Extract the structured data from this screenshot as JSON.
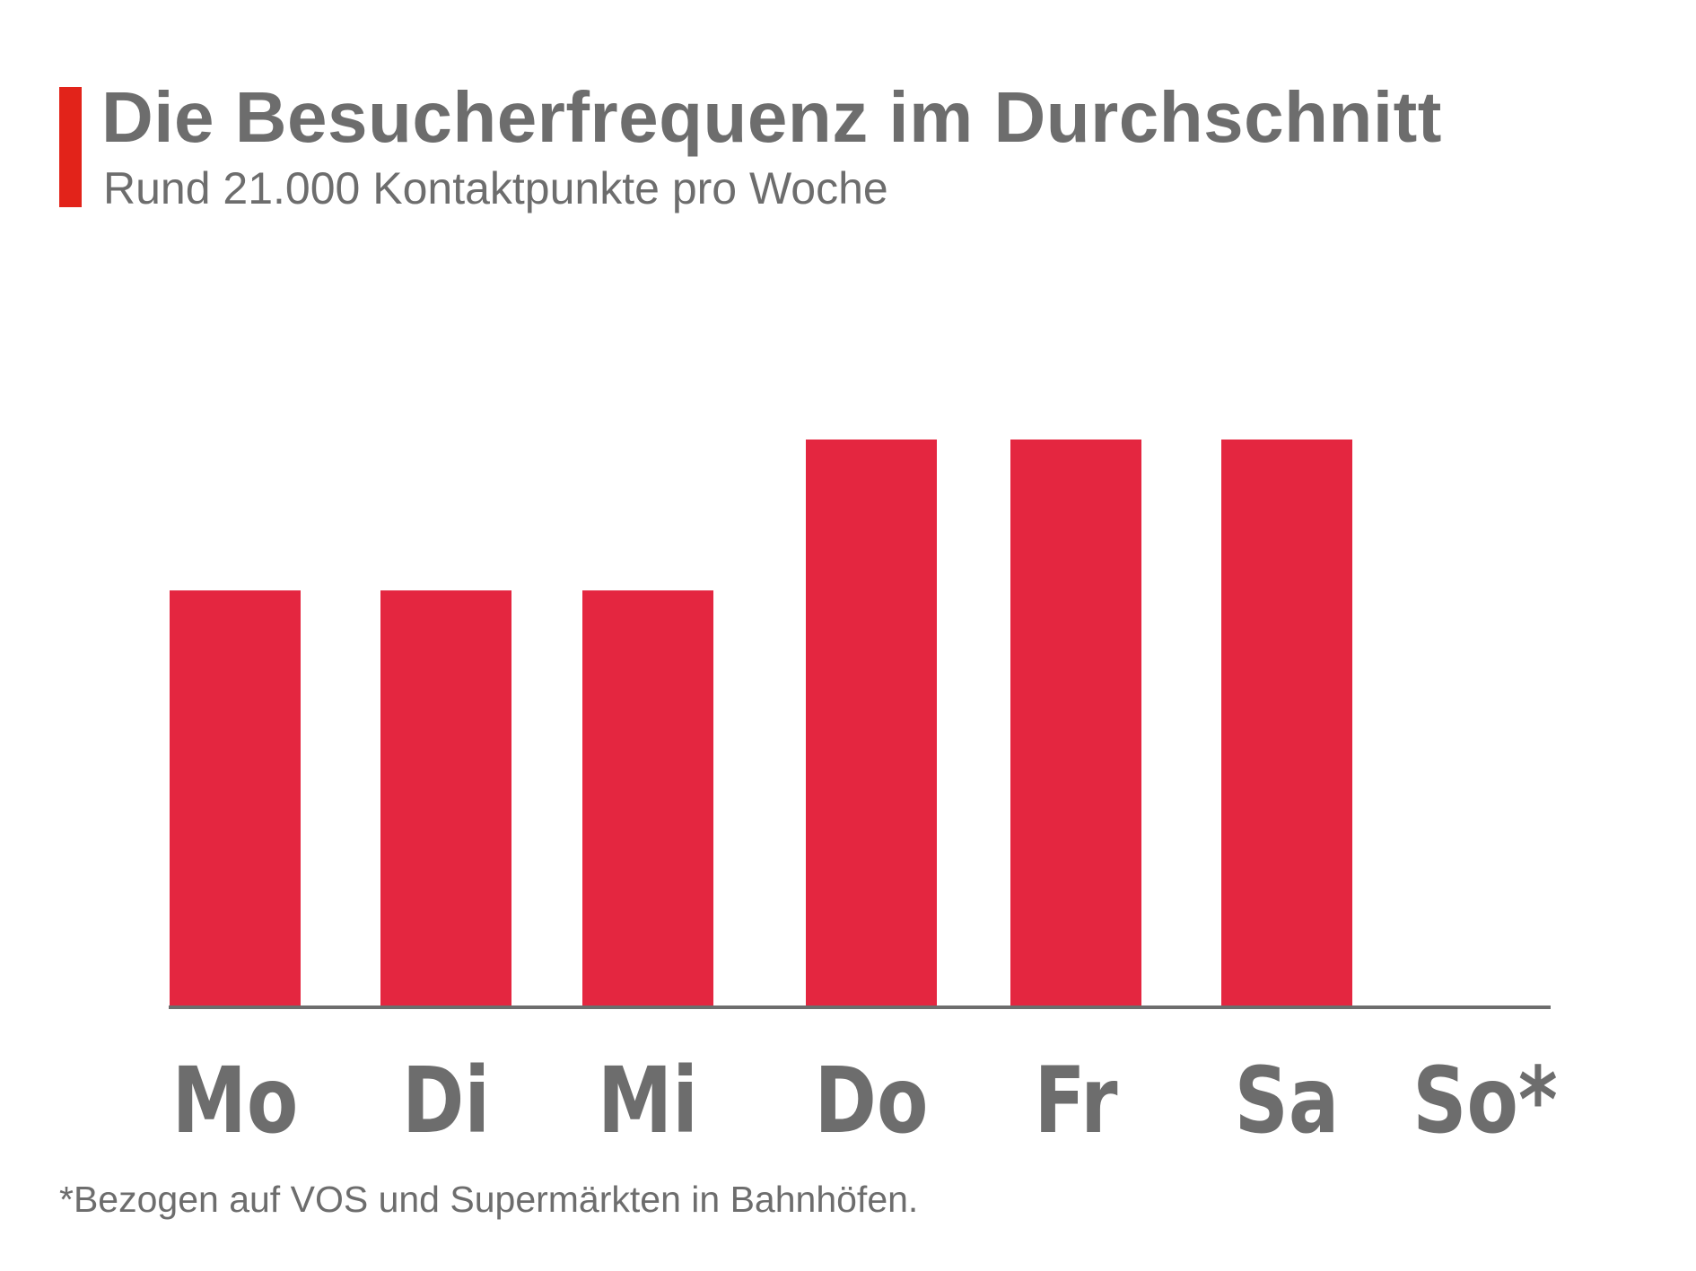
{
  "header": {
    "title": "Die Besucherfrequenz im Durchschnitt",
    "subtitle": "Rund 21.000 Kontaktpunkte pro Woche"
  },
  "footnote": "*Bezogen auf VOS und Supermärkten in Bahnhöfen.",
  "colors": {
    "bar": "#e42640",
    "accent": "#e2231a",
    "axis": "#6d6d6d",
    "text": "#6d6d6d"
  },
  "chart_data": {
    "type": "bar",
    "categories": [
      "Mo",
      "Di",
      "Mi",
      "Do",
      "Fr",
      "Sa",
      "So*"
    ],
    "values": [
      2750,
      2750,
      2750,
      3750,
      3750,
      3750,
      0
    ],
    "title": "",
    "xlabel": "",
    "ylabel": "",
    "ylim": [
      0,
      3750
    ],
    "grid": false,
    "legend": "none"
  }
}
